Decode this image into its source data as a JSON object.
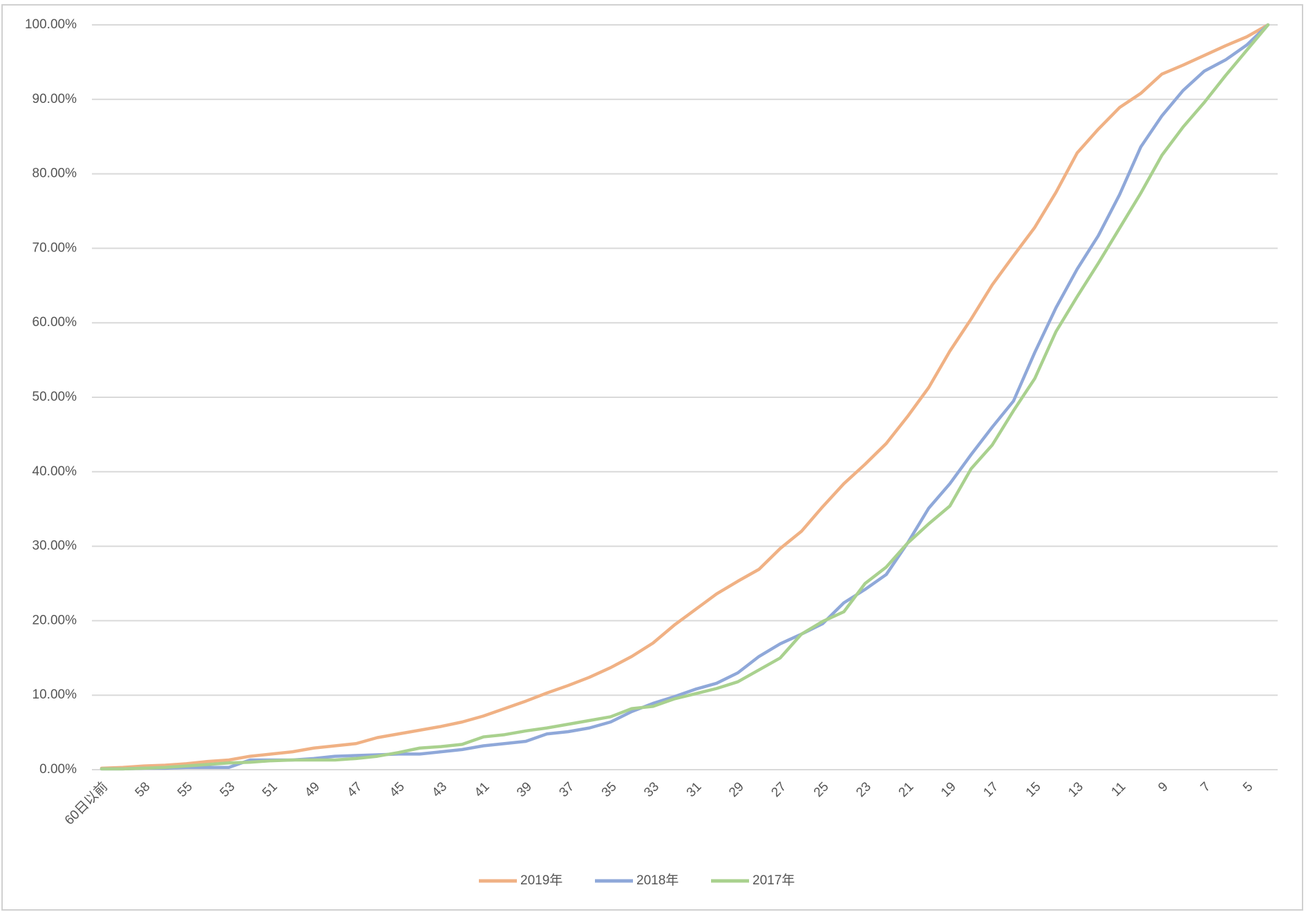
{
  "chart_data": {
    "type": "line",
    "categories": [
      "60日以前",
      null,
      "58",
      null,
      "55",
      null,
      "53",
      null,
      "51",
      null,
      "49",
      null,
      "47",
      null,
      "45",
      null,
      "43",
      null,
      "41",
      null,
      "39",
      null,
      "37",
      null,
      "35",
      null,
      "33",
      null,
      "31",
      null,
      "29",
      null,
      "27",
      null,
      "25",
      null,
      "23",
      null,
      "21",
      null,
      "19",
      null,
      "17",
      null,
      "15",
      null,
      "13",
      null,
      "11",
      null,
      "9",
      null,
      "7",
      null,
      "5",
      null
    ],
    "series": [
      {
        "name": "2019年",
        "color": "#f0b184",
        "values": [
          0.2,
          0.3,
          0.5,
          0.6,
          0.8,
          1.1,
          1.3,
          1.8,
          2.1,
          2.4,
          2.9,
          3.2,
          3.5,
          4.3,
          4.8,
          5.3,
          5.8,
          6.4,
          7.2,
          8.2,
          9.2,
          10.3,
          11.3,
          12.4,
          13.7,
          15.2,
          17.0,
          19.4,
          21.5,
          23.6,
          25.3,
          26.9,
          29.7,
          32.0,
          35.3,
          38.4,
          41.0,
          43.8,
          47.4,
          51.3,
          56.2,
          60.5,
          65.1,
          69.0,
          72.8,
          77.5,
          82.8,
          86.0,
          88.9,
          90.8,
          93.4,
          94.6,
          95.9,
          97.2,
          98.4,
          100
        ]
      },
      {
        "name": "2018年",
        "color": "#8fa8d9",
        "values": [
          0.1,
          0.1,
          0.2,
          0.2,
          0.3,
          0.3,
          0.3,
          1.3,
          1.3,
          1.3,
          1.5,
          1.8,
          1.9,
          2.0,
          2.1,
          2.1,
          2.4,
          2.7,
          3.2,
          3.5,
          3.8,
          4.8,
          5.1,
          5.6,
          6.4,
          7.8,
          8.9,
          9.8,
          10.8,
          11.6,
          13.0,
          15.2,
          16.9,
          18.2,
          19.6,
          22.4,
          24.2,
          26.2,
          30.4,
          35.1,
          38.4,
          42.3,
          46.0,
          49.5,
          56.0,
          62.0,
          67.2,
          71.7,
          77.2,
          83.6,
          87.8,
          91.2,
          93.8,
          95.3,
          97.3,
          100
        ]
      },
      {
        "name": "2017年",
        "color": "#a9d18e",
        "values": [
          0.1,
          0.1,
          0.2,
          0.3,
          0.5,
          0.7,
          0.9,
          1.0,
          1.2,
          1.3,
          1.3,
          1.3,
          1.5,
          1.8,
          2.3,
          2.9,
          3.1,
          3.4,
          4.4,
          4.7,
          5.2,
          5.6,
          6.1,
          6.6,
          7.1,
          8.2,
          8.5,
          9.5,
          10.2,
          10.9,
          11.8,
          13.4,
          15.0,
          18.2,
          19.9,
          21.2,
          25.0,
          27.2,
          30.4,
          33.0,
          35.4,
          40.4,
          43.6,
          48.2,
          52.5,
          58.8,
          63.5,
          68.0,
          72.7,
          77.4,
          82.5,
          86.3,
          89.6,
          93.2,
          96.6,
          100
        ]
      }
    ],
    "ylim": [
      0,
      100
    ],
    "yticks": [
      {
        "value": 0,
        "label": "0.00%"
      },
      {
        "value": 10,
        "label": "10.00%"
      },
      {
        "value": 20,
        "label": "20.00%"
      },
      {
        "value": 30,
        "label": "30.00%"
      },
      {
        "value": 40,
        "label": "40.00%"
      },
      {
        "value": 50,
        "label": "50.00%"
      },
      {
        "value": 60,
        "label": "60.00%"
      },
      {
        "value": 70,
        "label": "70.00%"
      },
      {
        "value": 80,
        "label": "80.00%"
      },
      {
        "value": 90,
        "label": "90.00%"
      },
      {
        "value": 100,
        "label": "100.00%"
      }
    ],
    "grid": true,
    "legend": "bottom"
  }
}
